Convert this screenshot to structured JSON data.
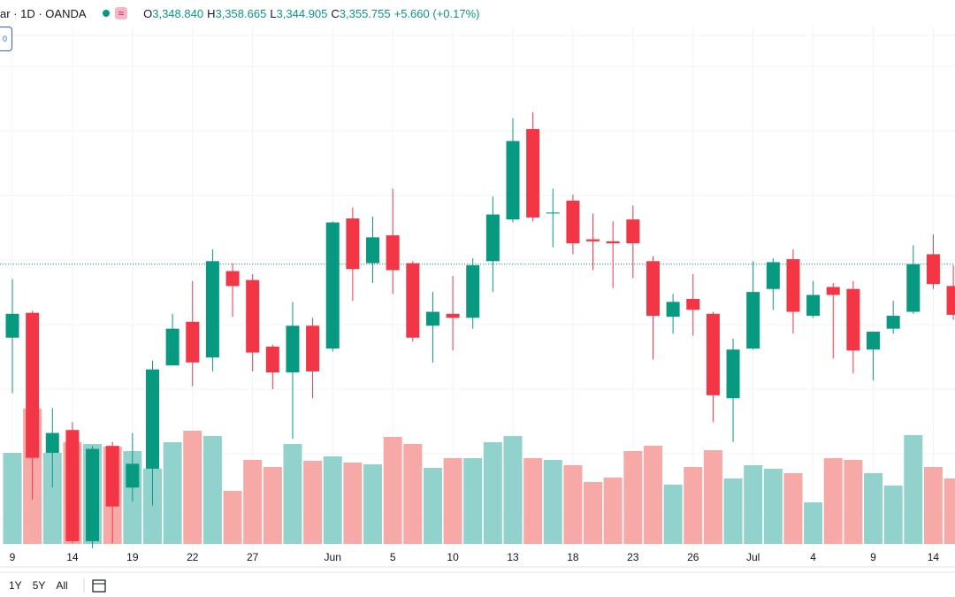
{
  "header": {
    "symbol": "ar · 1D · OANDA",
    "button": "0",
    "ohlc": [
      {
        "key": "O",
        "value": "3,348.840"
      },
      {
        "key": "H",
        "value": "3,358.665"
      },
      {
        "key": "L",
        "value": "3,344.905"
      },
      {
        "key": "C",
        "value": "3,355.755"
      }
    ],
    "change": "+5.660 (+0.17%)"
  },
  "toolbar": {
    "ranges": [
      "1Y",
      "5Y",
      "All"
    ]
  },
  "chart_data": {
    "type": "candlestick",
    "categories": [
      "9",
      null,
      null,
      "14",
      null,
      null,
      "19",
      null,
      null,
      "22",
      null,
      null,
      "27",
      null,
      null,
      null,
      "Jun",
      null,
      null,
      "5",
      null,
      null,
      "10",
      null,
      null,
      "13",
      null,
      null,
      "18",
      null,
      null,
      "23",
      null,
      null,
      "26",
      null,
      null,
      "Jul",
      null,
      null,
      "4",
      null,
      null,
      "9",
      null,
      null,
      "14",
      null
    ],
    "open": [
      3225,
      3250,
      3109,
      3132,
      3020,
      3116,
      3074,
      3093,
      3197,
      3241,
      3205,
      3292,
      3283,
      3216,
      3190,
      3237,
      3214,
      3345,
      3300,
      3328,
      3300,
      3237,
      3249,
      3245,
      3302,
      3344,
      3435,
      3350,
      3363,
      3324,
      3322,
      3344,
      3302,
      3246,
      3264,
      3249,
      3164,
      3214,
      3274,
      3304,
      3247,
      3276,
      3274,
      3213,
      3234,
      3251,
      3309,
      3277
    ],
    "high": [
      3284,
      3252,
      3154,
      3140,
      3116,
      3120,
      3129,
      3202,
      3249,
      3282,
      3314,
      3300,
      3289,
      3218,
      3261,
      3245,
      3342,
      3356,
      3347,
      3375,
      3302,
      3271,
      3287,
      3305,
      3367,
      3446,
      3452,
      3375,
      3369,
      3350,
      3342,
      3358,
      3307,
      3269,
      3289,
      3251,
      3224,
      3302,
      3305,
      3314,
      3282,
      3280,
      3282,
      3231,
      3262,
      3318,
      3329,
      3298
    ],
    "low": [
      3169,
      3062,
      3074,
      3018,
      3013,
      3018,
      3060,
      3056,
      3197,
      3176,
      3191,
      3246,
      3191,
      3173,
      3123,
      3164,
      3211,
      3262,
      3280,
      3269,
      3221,
      3200,
      3212,
      3234,
      3271,
      3341,
      3342,
      3316,
      3309,
      3293,
      3275,
      3285,
      3203,
      3229,
      3227,
      3140,
      3120,
      3213,
      3253,
      3229,
      3245,
      3204,
      3189,
      3182,
      3229,
      3249,
      3274,
      3243
    ],
    "close": [
      3249,
      3104,
      3129,
      3020,
      3113,
      3055,
      3098,
      3193,
      3234,
      3200,
      3302,
      3277,
      3210,
      3190,
      3237,
      3191,
      3341,
      3294,
      3326,
      3293,
      3225,
      3251,
      3245,
      3298,
      3349,
      3423,
      3346,
      3351,
      3320,
      3322,
      3320,
      3320,
      3247,
      3261,
      3253,
      3167,
      3213,
      3271,
      3301,
      3251,
      3268,
      3268,
      3212,
      3231,
      3247,
      3299,
      3279,
      3248
    ],
    "volume": [
      103,
      153,
      103,
      115,
      113,
      110,
      105,
      85,
      115,
      128,
      122,
      60,
      95,
      87,
      113,
      94,
      99,
      92,
      90,
      121,
      113,
      86,
      97,
      97,
      115,
      122,
      97,
      95,
      89,
      70,
      75,
      105,
      111,
      67,
      87,
      106,
      74,
      89,
      85,
      80,
      47,
      97,
      95,
      80,
      66,
      123,
      87,
      74
    ],
    "price_line": 3299,
    "ylim": [
      2995,
      3565
    ],
    "vlim": [
      0,
      200
    ],
    "up_color": "#089981",
    "down_color": "#f23645",
    "volume_up_color": "#92d2cc",
    "volume_down_color": "#f7a9a7",
    "grid": true
  }
}
